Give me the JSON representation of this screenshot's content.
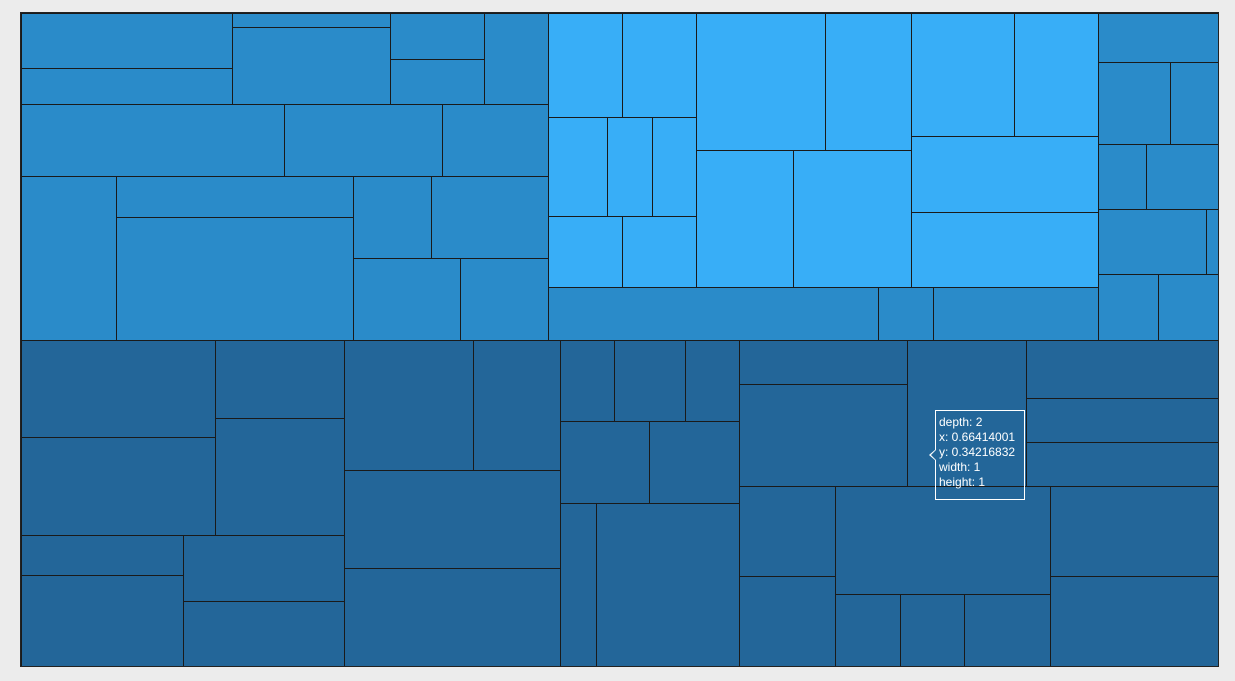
{
  "chart_data": {
    "type": "treemap",
    "title": "",
    "colors": {
      "group_a": "#2a8bc9",
      "group_b": "#38aef7",
      "group_c": "#236699",
      "border": "#1a1a1a",
      "background": "#ececec"
    },
    "tooltip": {
      "depth": "depth: 2",
      "x": "x: 0.66414001",
      "y": "y: 0.34216832",
      "width": "width: 1",
      "height": "height: 1"
    },
    "groups": [
      {
        "color": "group_a",
        "region": [
          0,
          0,
          0.44,
          0.5
        ],
        "layout": "v",
        "children": [
          {
            "value": 0.28,
            "layout": "h",
            "children": [
              {
                "value": 0.4,
                "layout": "v",
                "children": [
                  {
                    "value": 0.6
                  },
                  {
                    "value": 0.4
                  }
                ]
              },
              {
                "value": 0.6,
                "layout": "h",
                "children": [
                  {
                    "value": 0.5,
                    "layout": "v",
                    "children": [
                      {
                        "value": 0.15
                      },
                      {
                        "value": 0.85
                      }
                    ]
                  },
                  {
                    "value": 0.3,
                    "layout": "v",
                    "children": [
                      {
                        "value": 0.5
                      },
                      {
                        "value": 0.5
                      }
                    ]
                  },
                  {
                    "value": 0.2
                  }
                ]
              }
            ]
          },
          {
            "value": 0.22,
            "layout": "h",
            "children": [
              {
                "value": 0.5
              },
              {
                "value": 0.5,
                "layout": "h",
                "children": [
                  {
                    "value": 0.6
                  },
                  {
                    "value": 0.4
                  }
                ]
              }
            ]
          },
          {
            "value": 0.5,
            "layout": "h",
            "children": [
              {
                "value": 0.18
              },
              {
                "value": 0.45,
                "layout": "v",
                "children": [
                  {
                    "value": 0.25
                  },
                  {
                    "value": 0.75
                  }
                ]
              },
              {
                "value": 0.37,
                "layout": "v",
                "children": [
                  {
                    "value": 0.5,
                    "layout": "h",
                    "children": [
                      {
                        "value": 0.4
                      },
                      {
                        "value": 0.6
                      }
                    ]
                  },
                  {
                    "value": 0.5,
                    "layout": "h",
                    "children": [
                      {
                        "value": 0.55
                      },
                      {
                        "value": 0.45
                      }
                    ]
                  }
                ]
              }
            ]
          }
        ]
      },
      {
        "color": "group_b",
        "region": [
          0.44,
          0,
          0.46,
          0.42
        ],
        "layout": "h",
        "children": [
          {
            "value": 0.27,
            "layout": "v",
            "children": [
              {
                "value": 0.38,
                "layout": "h",
                "children": [
                  {
                    "value": 0.5
                  },
                  {
                    "value": 0.5
                  }
                ]
              },
              {
                "value": 0.36,
                "layout": "h",
                "children": [
                  {
                    "value": 0.4
                  },
                  {
                    "value": 0.3
                  },
                  {
                    "value": 0.3
                  }
                ]
              },
              {
                "value": 0.26,
                "layout": "h",
                "children": [
                  {
                    "value": 0.5
                  },
                  {
                    "value": 0.5
                  }
                ]
              }
            ]
          },
          {
            "value": 0.39,
            "layout": "v",
            "children": [
              {
                "value": 0.5,
                "layout": "h",
                "children": [
                  {
                    "value": 0.6
                  },
                  {
                    "value": 0.4
                  }
                ]
              },
              {
                "value": 0.5,
                "layout": "h",
                "children": [
                  {
                    "value": 0.45
                  },
                  {
                    "value": 0.55
                  }
                ]
              }
            ]
          },
          {
            "value": 0.34,
            "layout": "v",
            "children": [
              {
                "value": 0.45,
                "layout": "h",
                "children": [
                  {
                    "value": 0.55
                  },
                  {
                    "value": 0.45
                  }
                ]
              },
              {
                "value": 0.55,
                "layout": "v",
                "children": [
                  {
                    "value": 0.5
                  },
                  {
                    "value": 0.5
                  }
                ]
              }
            ]
          }
        ]
      },
      {
        "color": "group_a",
        "region": [
          0.44,
          0.42,
          0.46,
          0.08
        ],
        "layout": "h",
        "children": [
          {
            "value": 0.6
          },
          {
            "value": 0.1
          },
          {
            "value": 0.3
          }
        ]
      },
      {
        "color": "group_a",
        "region": [
          0.9,
          0,
          0.1,
          0.5
        ],
        "layout": "v",
        "children": [
          {
            "value": 0.15
          },
          {
            "value": 0.25,
            "layout": "h",
            "children": [
              {
                "value": 0.6
              },
              {
                "value": 0.4
              }
            ]
          },
          {
            "value": 0.2,
            "layout": "h",
            "children": [
              {
                "value": 0.4
              },
              {
                "value": 0.6
              }
            ]
          },
          {
            "value": 0.2,
            "layout": "h",
            "children": [
              {
                "value": 0.9
              },
              {
                "value": 0.1
              }
            ]
          },
          {
            "value": 0.2,
            "layout": "h",
            "children": [
              {
                "value": 0.5
              },
              {
                "value": 0.5
              }
            ]
          }
        ]
      },
      {
        "color": "group_c",
        "region": [
          0,
          0.5,
          0.6,
          0.5
        ],
        "layout": "h",
        "children": [
          {
            "value": 0.45,
            "layout": "v",
            "children": [
              {
                "value": 0.6,
                "layout": "h",
                "children": [
                  {
                    "value": 0.6,
                    "layout": "v",
                    "children": [
                      {
                        "value": 0.5
                      },
                      {
                        "value": 0.5
                      }
                    ]
                  },
                  {
                    "value": 0.4,
                    "layout": "v",
                    "children": [
                      {
                        "value": 0.4
                      },
                      {
                        "value": 0.6
                      }
                    ]
                  }
                ]
              },
              {
                "value": 0.4,
                "layout": "h",
                "children": [
                  {
                    "value": 0.5,
                    "layout": "v",
                    "children": [
                      {
                        "value": 0.3
                      },
                      {
                        "value": 0.7
                      }
                    ]
                  },
                  {
                    "value": 0.5,
                    "layout": "v",
                    "children": [
                      {
                        "value": 0.5
                      },
                      {
                        "value": 0.5
                      }
                    ]
                  }
                ]
              }
            ]
          },
          {
            "value": 0.3,
            "layout": "v",
            "children": [
              {
                "value": 0.4,
                "layout": "h",
                "children": [
                  {
                    "value": 0.6
                  },
                  {
                    "value": 0.4
                  }
                ]
              },
              {
                "value": 0.6,
                "layout": "v",
                "children": [
                  {
                    "value": 0.5
                  },
                  {
                    "value": 0.5
                  }
                ]
              }
            ]
          },
          {
            "value": 0.25,
            "layout": "v",
            "children": [
              {
                "value": 0.25,
                "layout": "h",
                "children": [
                  {
                    "value": 0.3
                  },
                  {
                    "value": 0.4
                  },
                  {
                    "value": 0.3
                  }
                ]
              },
              {
                "value": 0.25,
                "layout": "h",
                "children": [
                  {
                    "value": 0.5
                  },
                  {
                    "value": 0.5
                  }
                ]
              },
              {
                "value": 0.5,
                "layout": "h",
                "children": [
                  {
                    "value": 0.2
                  },
                  {
                    "value": 0.8
                  }
                ]
              }
            ]
          }
        ]
      },
      {
        "color": "group_c",
        "region": [
          0.6,
          0.5,
          0.4,
          0.5
        ],
        "layout": "v",
        "children": [
          {
            "value": 0.45,
            "layout": "h",
            "children": [
              {
                "value": 0.35,
                "layout": "v",
                "children": [
                  {
                    "value": 0.3
                  },
                  {
                    "value": 0.7
                  }
                ]
              },
              {
                "value": 0.25
              },
              {
                "value": 0.4,
                "layout": "v",
                "children": [
                  {
                    "value": 0.4
                  },
                  {
                    "value": 0.3
                  },
                  {
                    "value": 0.3
                  }
                ]
              }
            ]
          },
          {
            "value": 0.55,
            "layout": "h",
            "children": [
              {
                "value": 0.2,
                "layout": "v",
                "children": [
                  {
                    "value": 0.5
                  },
                  {
                    "value": 0.5
                  }
                ]
              },
              {
                "value": 0.45,
                "layout": "v",
                "children": [
                  {
                    "value": 0.6
                  },
                  {
                    "value": 0.4,
                    "layout": "h",
                    "children": [
                      {
                        "value": 0.3
                      },
                      {
                        "value": 0.3
                      },
                      {
                        "value": 0.4
                      }
                    ]
                  }
                ]
              },
              {
                "value": 0.35,
                "layout": "v",
                "children": [
                  {
                    "value": 0.5
                  },
                  {
                    "value": 0.5
                  }
                ]
              }
            ]
          }
        ]
      }
    ]
  }
}
